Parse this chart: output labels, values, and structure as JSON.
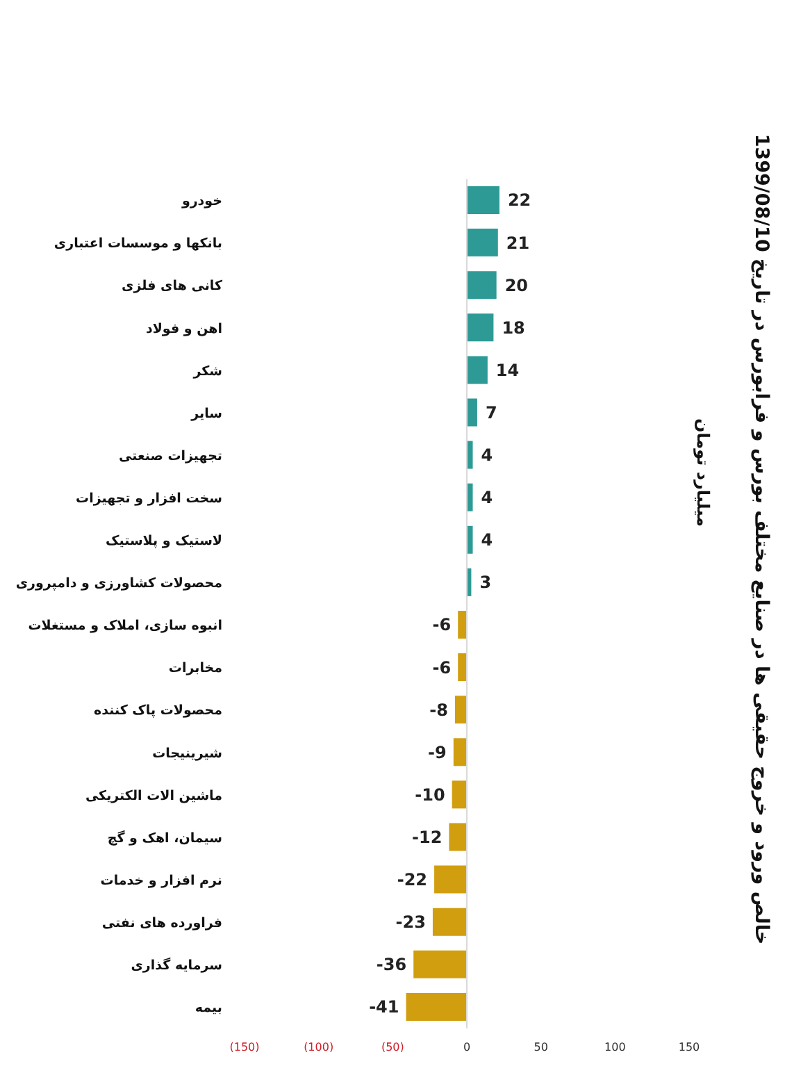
{
  "chart_data": {
    "type": "bar",
    "orientation": "horizontal",
    "title": "خالص ورود و خروج حقیقی ها در صنایع مختلف  بورس و فرابورس در تاریخ 1399/08/10",
    "subtitle": "میلیارد تومان",
    "categories": [
      "خودرو",
      "بانکها و موسسات اعتباری",
      "کانی های فلزی",
      "اهن و فولاد",
      "شکر",
      "سایر",
      "تجهیزات صنعتی",
      "سخت افزار و تجهیزات",
      "لاستیک و پلاستیک",
      "محصولات کشاورزی و دامپروری",
      "انبوه سازی، املاک و مستغلات",
      "مخابرات",
      "محصولات پاک کننده",
      "شیرینیجات",
      "ماشین الات الکتریکی",
      "سیمان، اهک و گچ",
      "نرم افزار و خدمات",
      "فراورده های نفتی",
      "سرمایه گذاری",
      "بیمه"
    ],
    "values": [
      22,
      21,
      20,
      18,
      14,
      7,
      4,
      4,
      4,
      3,
      -6,
      -6,
      -8,
      -9,
      -10,
      -12,
      -22,
      -23,
      -36,
      -41
    ],
    "colors": [
      "#2e9a95",
      "#2e9a95",
      "#2e9a95",
      "#2e9a95",
      "#2e9a95",
      "#2e9a95",
      "#2e9a95",
      "#2e9a95",
      "#2e9a95",
      "#2e9a95",
      "#d19e0f",
      "#d19e0f",
      "#d19e0f",
      "#d19e0f",
      "#d19e0f",
      "#d19e0f",
      "#d19e0f",
      "#d19e0f",
      "#d19e0f",
      "#d19e0f"
    ],
    "xlim": [
      -150,
      150
    ],
    "xticks": [
      {
        "value": -150,
        "label": "(150)"
      },
      {
        "value": -100,
        "label": "(100)"
      },
      {
        "value": -50,
        "label": "(50)"
      },
      0,
      50,
      100,
      150
    ],
    "data_labels": true
  }
}
